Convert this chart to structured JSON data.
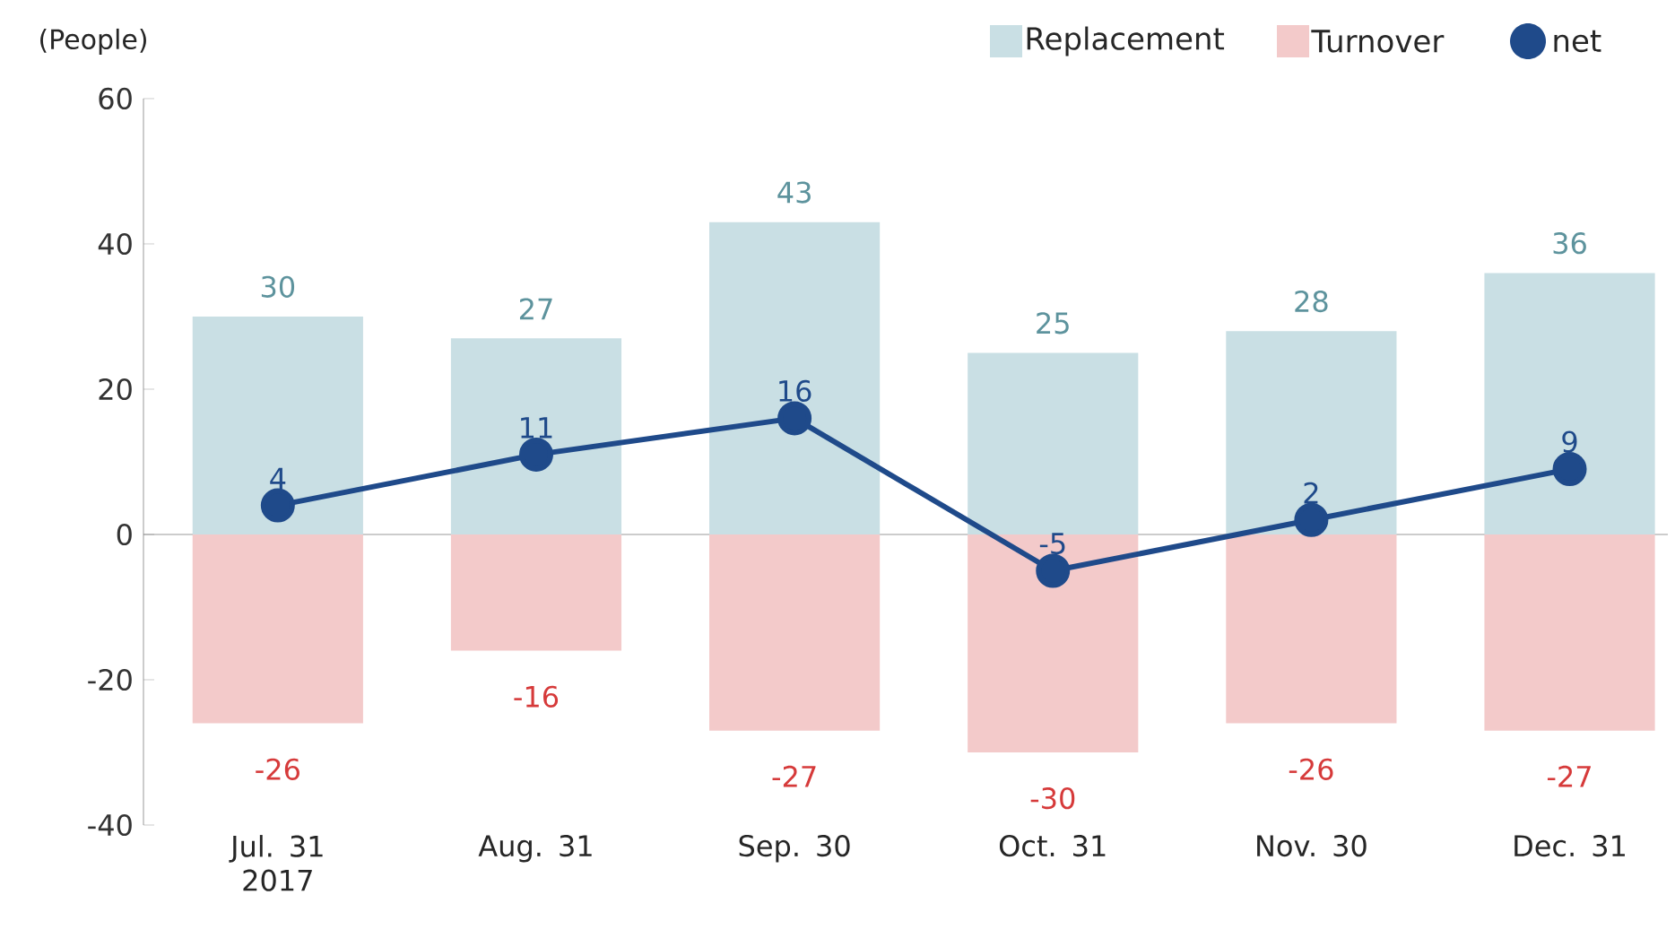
{
  "chart_data": {
    "type": "bar",
    "ylabel": "(People)",
    "categories": [
      "Jul. 31 2017",
      "Aug. 31",
      "Sep. 30",
      "Oct. 31",
      "Nov. 30",
      "Dec. 31"
    ],
    "series": [
      {
        "name": "Replacement",
        "color": "#c9dfe4",
        "values": [
          30,
          27,
          43,
          25,
          28,
          36
        ]
      },
      {
        "name": "Turnover",
        "color": "#f3caca",
        "values": [
          -26,
          -16,
          -27,
          -30,
          -26,
          -27
        ]
      },
      {
        "name": "net",
        "type": "line",
        "color": "#1f4a8a",
        "values": [
          4,
          11,
          16,
          -5,
          2,
          9
        ]
      }
    ],
    "stacked": true,
    "data_labels": true,
    "ylim": [
      -40,
      60
    ],
    "yticks": [
      -40,
      -20,
      0,
      20,
      40,
      60
    ],
    "legend": "top right",
    "marker": "circle",
    "line_style": "solid"
  }
}
